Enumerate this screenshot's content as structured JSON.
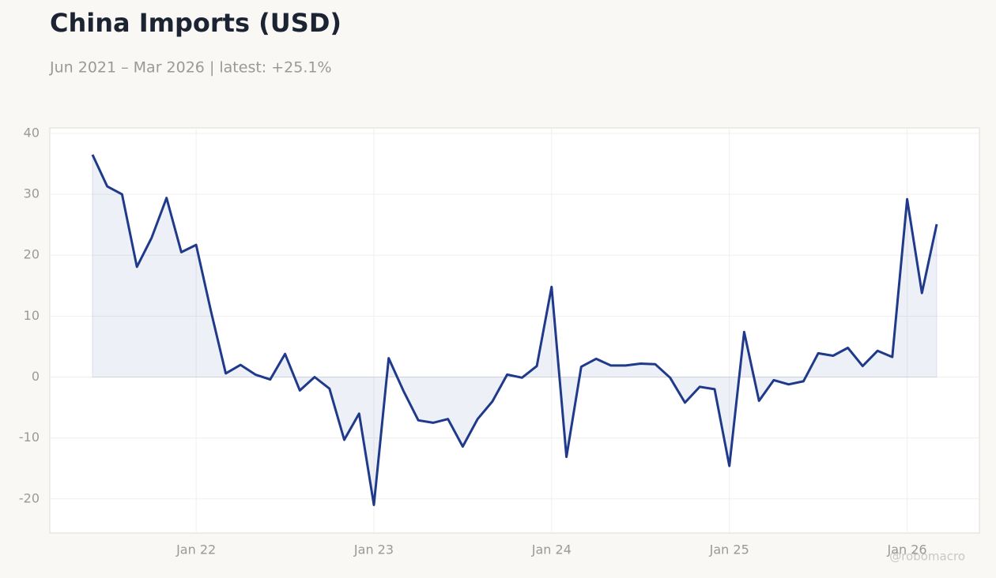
{
  "chart_data": {
    "type": "line",
    "title": "China Imports (USD)",
    "subtitle": "Jun 2021 – Mar 2026 | latest: +25.1%",
    "watermark": "@robomacro",
    "x": [
      "2021-06",
      "2021-07",
      "2021-08",
      "2021-09",
      "2021-10",
      "2021-11",
      "2021-12",
      "2022-01",
      "2022-02",
      "2022-03",
      "2022-04",
      "2022-05",
      "2022-06",
      "2022-07",
      "2022-08",
      "2022-09",
      "2022-10",
      "2022-11",
      "2022-12",
      "2023-01",
      "2023-02",
      "2023-03",
      "2023-04",
      "2023-05",
      "2023-06",
      "2023-07",
      "2023-08",
      "2023-09",
      "2023-10",
      "2023-11",
      "2023-12",
      "2024-01",
      "2024-02",
      "2024-03",
      "2024-04",
      "2024-05",
      "2024-06",
      "2024-07",
      "2024-08",
      "2024-09",
      "2024-10",
      "2024-11",
      "2024-12",
      "2025-01",
      "2025-02",
      "2025-03",
      "2025-04",
      "2025-05",
      "2025-06",
      "2025-07",
      "2025-08",
      "2025-09",
      "2025-10",
      "2025-11",
      "2025-12",
      "2026-01",
      "2026-02",
      "2026-03"
    ],
    "series": [
      {
        "name": "China Imports",
        "color": "#1f3a8a",
        "values": [
          36.5,
          31.3,
          30.0,
          18.1,
          22.9,
          29.4,
          20.5,
          21.7,
          10.8,
          0.6,
          2.0,
          0.4,
          -0.4,
          3.8,
          -2.2,
          0.0,
          -1.9,
          -10.3,
          -6.0,
          -21.0,
          3.1,
          -2.3,
          -7.1,
          -7.5,
          -6.9,
          -11.4,
          -6.9,
          -4.0,
          0.4,
          -0.1,
          1.8,
          14.8,
          -13.1,
          1.7,
          3.0,
          1.9,
          1.9,
          2.2,
          2.1,
          -0.1,
          -4.2,
          -1.6,
          -2.0,
          -14.6,
          7.4,
          -3.9,
          -0.5,
          -1.2,
          -0.7,
          3.9,
          3.5,
          4.8,
          1.8,
          4.3,
          3.3,
          29.2,
          13.8,
          25.1
        ]
      }
    ],
    "ylim": [
      -25.6,
      40.9
    ],
    "yticks": [
      -20,
      -10,
      0,
      10,
      20,
      30,
      40
    ],
    "xticks": [
      {
        "value": "2022-01",
        "label": "Jan 22"
      },
      {
        "value": "2023-01",
        "label": "Jan 23"
      },
      {
        "value": "2024-01",
        "label": "Jan 24"
      },
      {
        "value": "2025-01",
        "label": "Jan 25"
      },
      {
        "value": "2026-01",
        "label": "Jan 26"
      }
    ],
    "grid": true
  }
}
